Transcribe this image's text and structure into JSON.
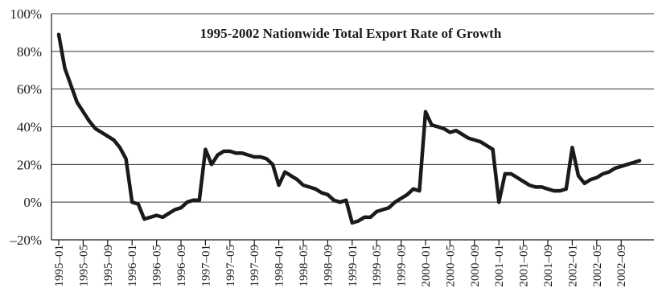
{
  "chart_data": {
    "type": "line",
    "title": "1995-2002 Nationwide Total Export Rate of Growth",
    "xlabel": "",
    "ylabel": "",
    "ylim": [
      -20,
      100
    ],
    "y_ticks": [
      100,
      80,
      60,
      40,
      20,
      0,
      -20
    ],
    "y_tick_labels": [
      "100%",
      "80%",
      "60%",
      "40%",
      "20%",
      "0%",
      "–20%"
    ],
    "x_tick_labels": [
      "1995–01",
      "1995–05",
      "1995–09",
      "1996–01",
      "1996–05",
      "1996–09",
      "1997–01",
      "1997–05",
      "1997–09",
      "1998–01",
      "1998–05",
      "1998–09",
      "1999–01",
      "1999–05",
      "1999–09",
      "2000–01",
      "2000–05",
      "2000–09",
      "2001–01",
      "2001–05",
      "2001–09",
      "2002–01",
      "2002–05",
      "2002–09"
    ],
    "grid": true,
    "legend": "none",
    "series": [
      {
        "x": [
          "1995-01",
          "1995-02",
          "1995-03",
          "1995-04",
          "1995-05",
          "1995-06",
          "1995-07",
          "1995-08",
          "1995-09",
          "1995-10",
          "1995-11",
          "1995-12",
          "1996-01",
          "1996-02",
          "1996-03",
          "1996-04",
          "1996-05",
          "1996-06",
          "1996-07",
          "1996-08",
          "1996-09",
          "1996-10",
          "1996-11",
          "1996-12",
          "1997-01",
          "1997-02",
          "1997-03",
          "1997-04",
          "1997-05",
          "1997-06",
          "1997-07",
          "1997-08",
          "1997-09",
          "1997-10",
          "1997-11",
          "1997-12",
          "1998-01",
          "1998-02",
          "1998-03",
          "1998-04",
          "1998-05",
          "1998-06",
          "1998-07",
          "1998-08",
          "1998-09",
          "1998-10",
          "1998-11",
          "1998-12",
          "1999-01",
          "1999-02",
          "1999-03",
          "1999-04",
          "1999-05",
          "1999-06",
          "1999-07",
          "1999-08",
          "1999-09",
          "1999-10",
          "1999-11",
          "1999-12",
          "2000-01",
          "2000-02",
          "2000-03",
          "2000-04",
          "2000-05",
          "2000-06",
          "2000-07",
          "2000-08",
          "2000-09",
          "2000-10",
          "2000-11",
          "2000-12",
          "2001-01",
          "2001-02",
          "2001-03",
          "2001-04",
          "2001-05",
          "2001-06",
          "2001-07",
          "2001-08",
          "2001-09",
          "2001-10",
          "2001-11",
          "2001-12",
          "2002-01",
          "2002-02",
          "2002-03",
          "2002-04",
          "2002-05",
          "2002-06",
          "2002-07",
          "2002-08",
          "2002-09",
          "2002-10",
          "2002-11",
          "2002-12"
        ],
        "values": [
          89,
          71,
          62,
          53,
          48,
          43,
          39,
          37,
          35,
          33,
          29,
          23,
          0,
          -1,
          -9,
          -8,
          -7,
          -8,
          -6,
          -4,
          -3,
          0,
          1,
          1,
          28,
          20,
          25,
          27,
          27,
          26,
          26,
          25,
          24,
          24,
          23,
          20,
          9,
          16,
          14,
          12,
          9,
          8,
          7,
          5,
          4,
          1,
          0,
          1,
          -11,
          -10,
          -8,
          -8,
          -5,
          -4,
          -3,
          0,
          2,
          4,
          7,
          6,
          48,
          41,
          40,
          39,
          37,
          38,
          36,
          34,
          33,
          32,
          30,
          28,
          0,
          15,
          15,
          13,
          11,
          9,
          8,
          8,
          7,
          6,
          6,
          7,
          29,
          14,
          10,
          12,
          13,
          15,
          16,
          18,
          19,
          20,
          21,
          22
        ]
      }
    ]
  }
}
